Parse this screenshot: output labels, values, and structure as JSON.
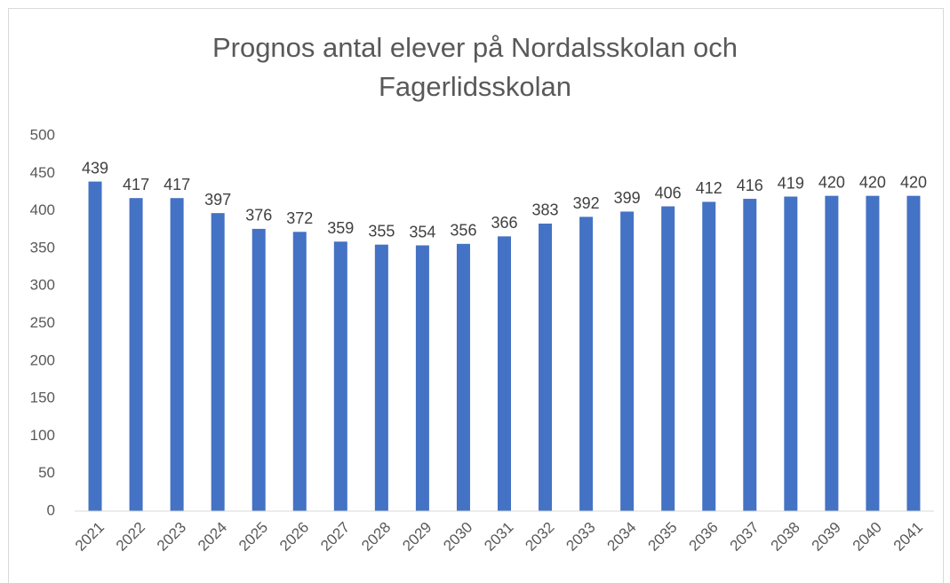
{
  "chart_data": {
    "type": "bar",
    "title": "Prognos antal elever på Nordalsskolan och Fagerlidsskolan",
    "categories": [
      "2021",
      "2022",
      "2023",
      "2024",
      "2025",
      "2026",
      "2027",
      "2028",
      "2029",
      "2030",
      "2031",
      "2032",
      "2033",
      "2034",
      "2035",
      "2036",
      "2037",
      "2038",
      "2039",
      "2040",
      "2041"
    ],
    "values": [
      439,
      417,
      417,
      397,
      376,
      372,
      359,
      355,
      354,
      356,
      366,
      383,
      392,
      399,
      406,
      412,
      416,
      419,
      420,
      420,
      420
    ],
    "color": "#4472c4",
    "ylim": [
      0,
      500
    ],
    "yticks": [
      0,
      50,
      100,
      150,
      200,
      250,
      300,
      350,
      400,
      450,
      500
    ],
    "grid": false
  }
}
